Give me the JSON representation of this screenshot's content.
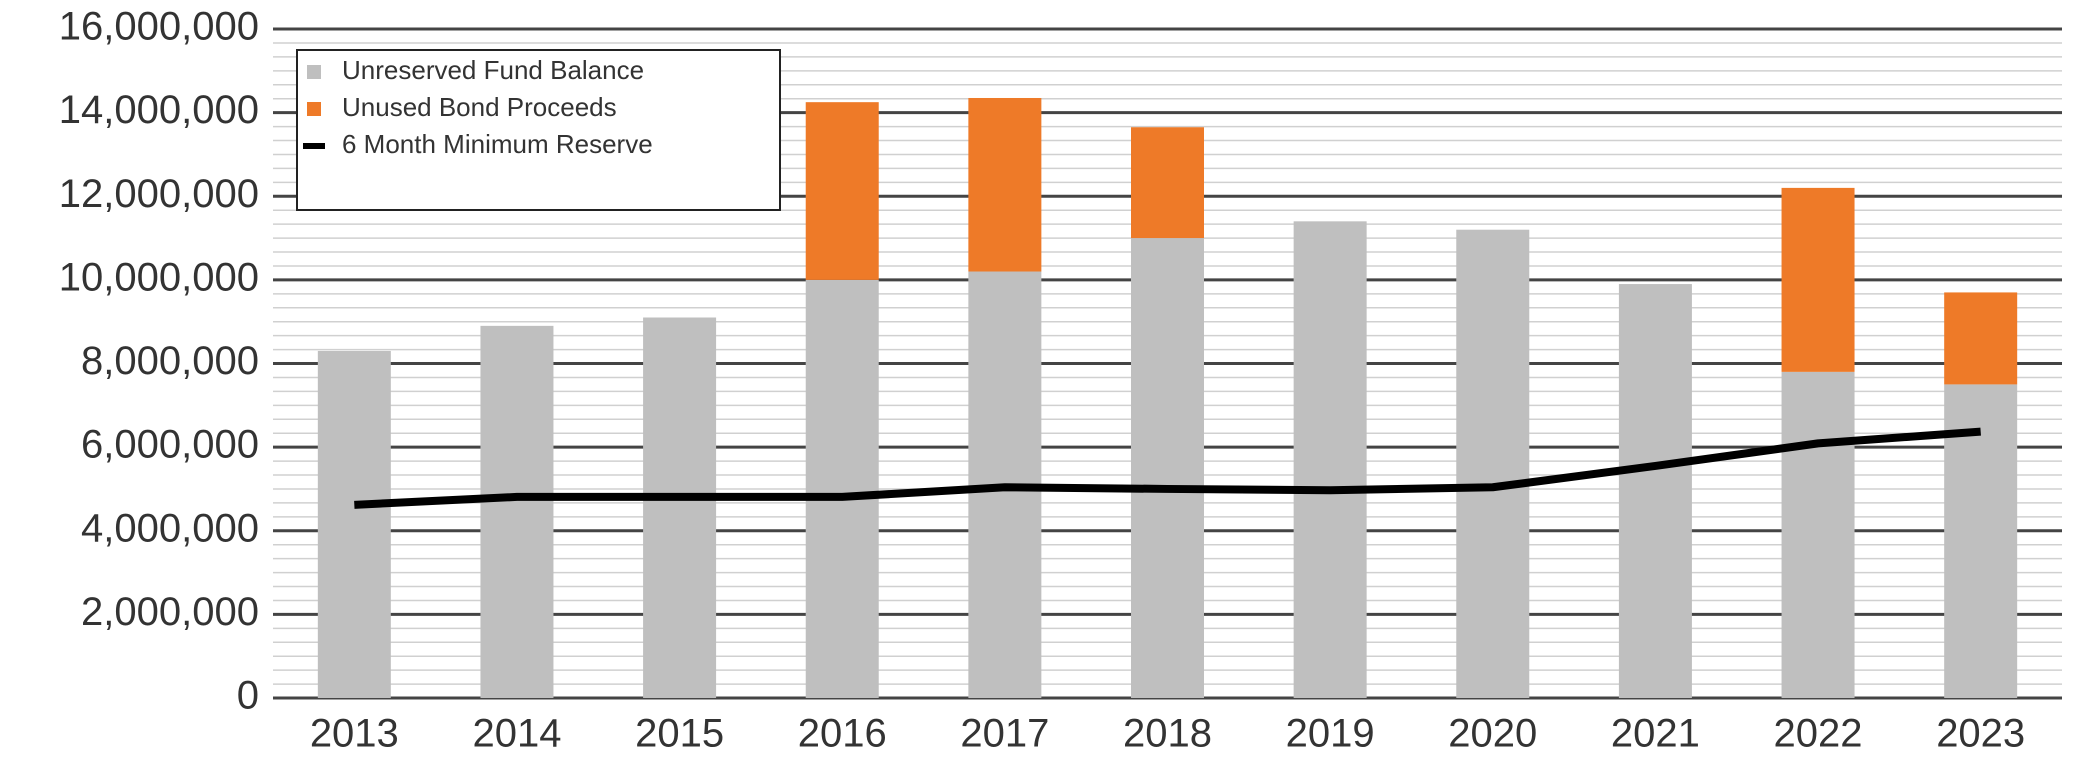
{
  "chart_data": {
    "type": "stacked_bar_line",
    "categories": [
      "2013",
      "2014",
      "2015",
      "2016",
      "2017",
      "2018",
      "2019",
      "2020",
      "2021",
      "2022",
      "2023"
    ],
    "series": [
      {
        "name": "Unreserved Fund Balance",
        "color": "#bfbfbf",
        "kind": "bar",
        "values": [
          8300000,
          8900000,
          9100000,
          10000000,
          10200000,
          11000000,
          11400000,
          11200000,
          9900000,
          7800000,
          7500000
        ]
      },
      {
        "name": "Unused Bond Proceeds",
        "color": "#ee7a28",
        "kind": "bar",
        "values": [
          0,
          0,
          0,
          4250000,
          4150000,
          2650000,
          0,
          0,
          0,
          4400000,
          2200000
        ]
      },
      {
        "name": "6 Month Minimum Reserve",
        "color": "#000000",
        "kind": "line",
        "values": [
          4620000,
          4810000,
          4810000,
          4810000,
          5040000,
          5000000,
          4970000,
          5040000,
          5550000,
          6090000,
          6370000
        ]
      }
    ],
    "ylim": [
      0,
      16000000
    ],
    "yticks": [
      {
        "value": 0,
        "label": "0"
      },
      {
        "value": 2000000,
        "label": "2,000,000"
      },
      {
        "value": 4000000,
        "label": "4,000,000"
      },
      {
        "value": 6000000,
        "label": "6,000,000"
      },
      {
        "value": 8000000,
        "label": "8,000,000"
      },
      {
        "value": 10000000,
        "label": "10,000,000"
      },
      {
        "value": 12000000,
        "label": "12,000,000"
      },
      {
        "value": 14000000,
        "label": "14,000,000"
      },
      {
        "value": 16000000,
        "label": "16,000,000"
      }
    ],
    "grid": true,
    "minor_grid_divisions": 6,
    "legend": "upper left"
  }
}
